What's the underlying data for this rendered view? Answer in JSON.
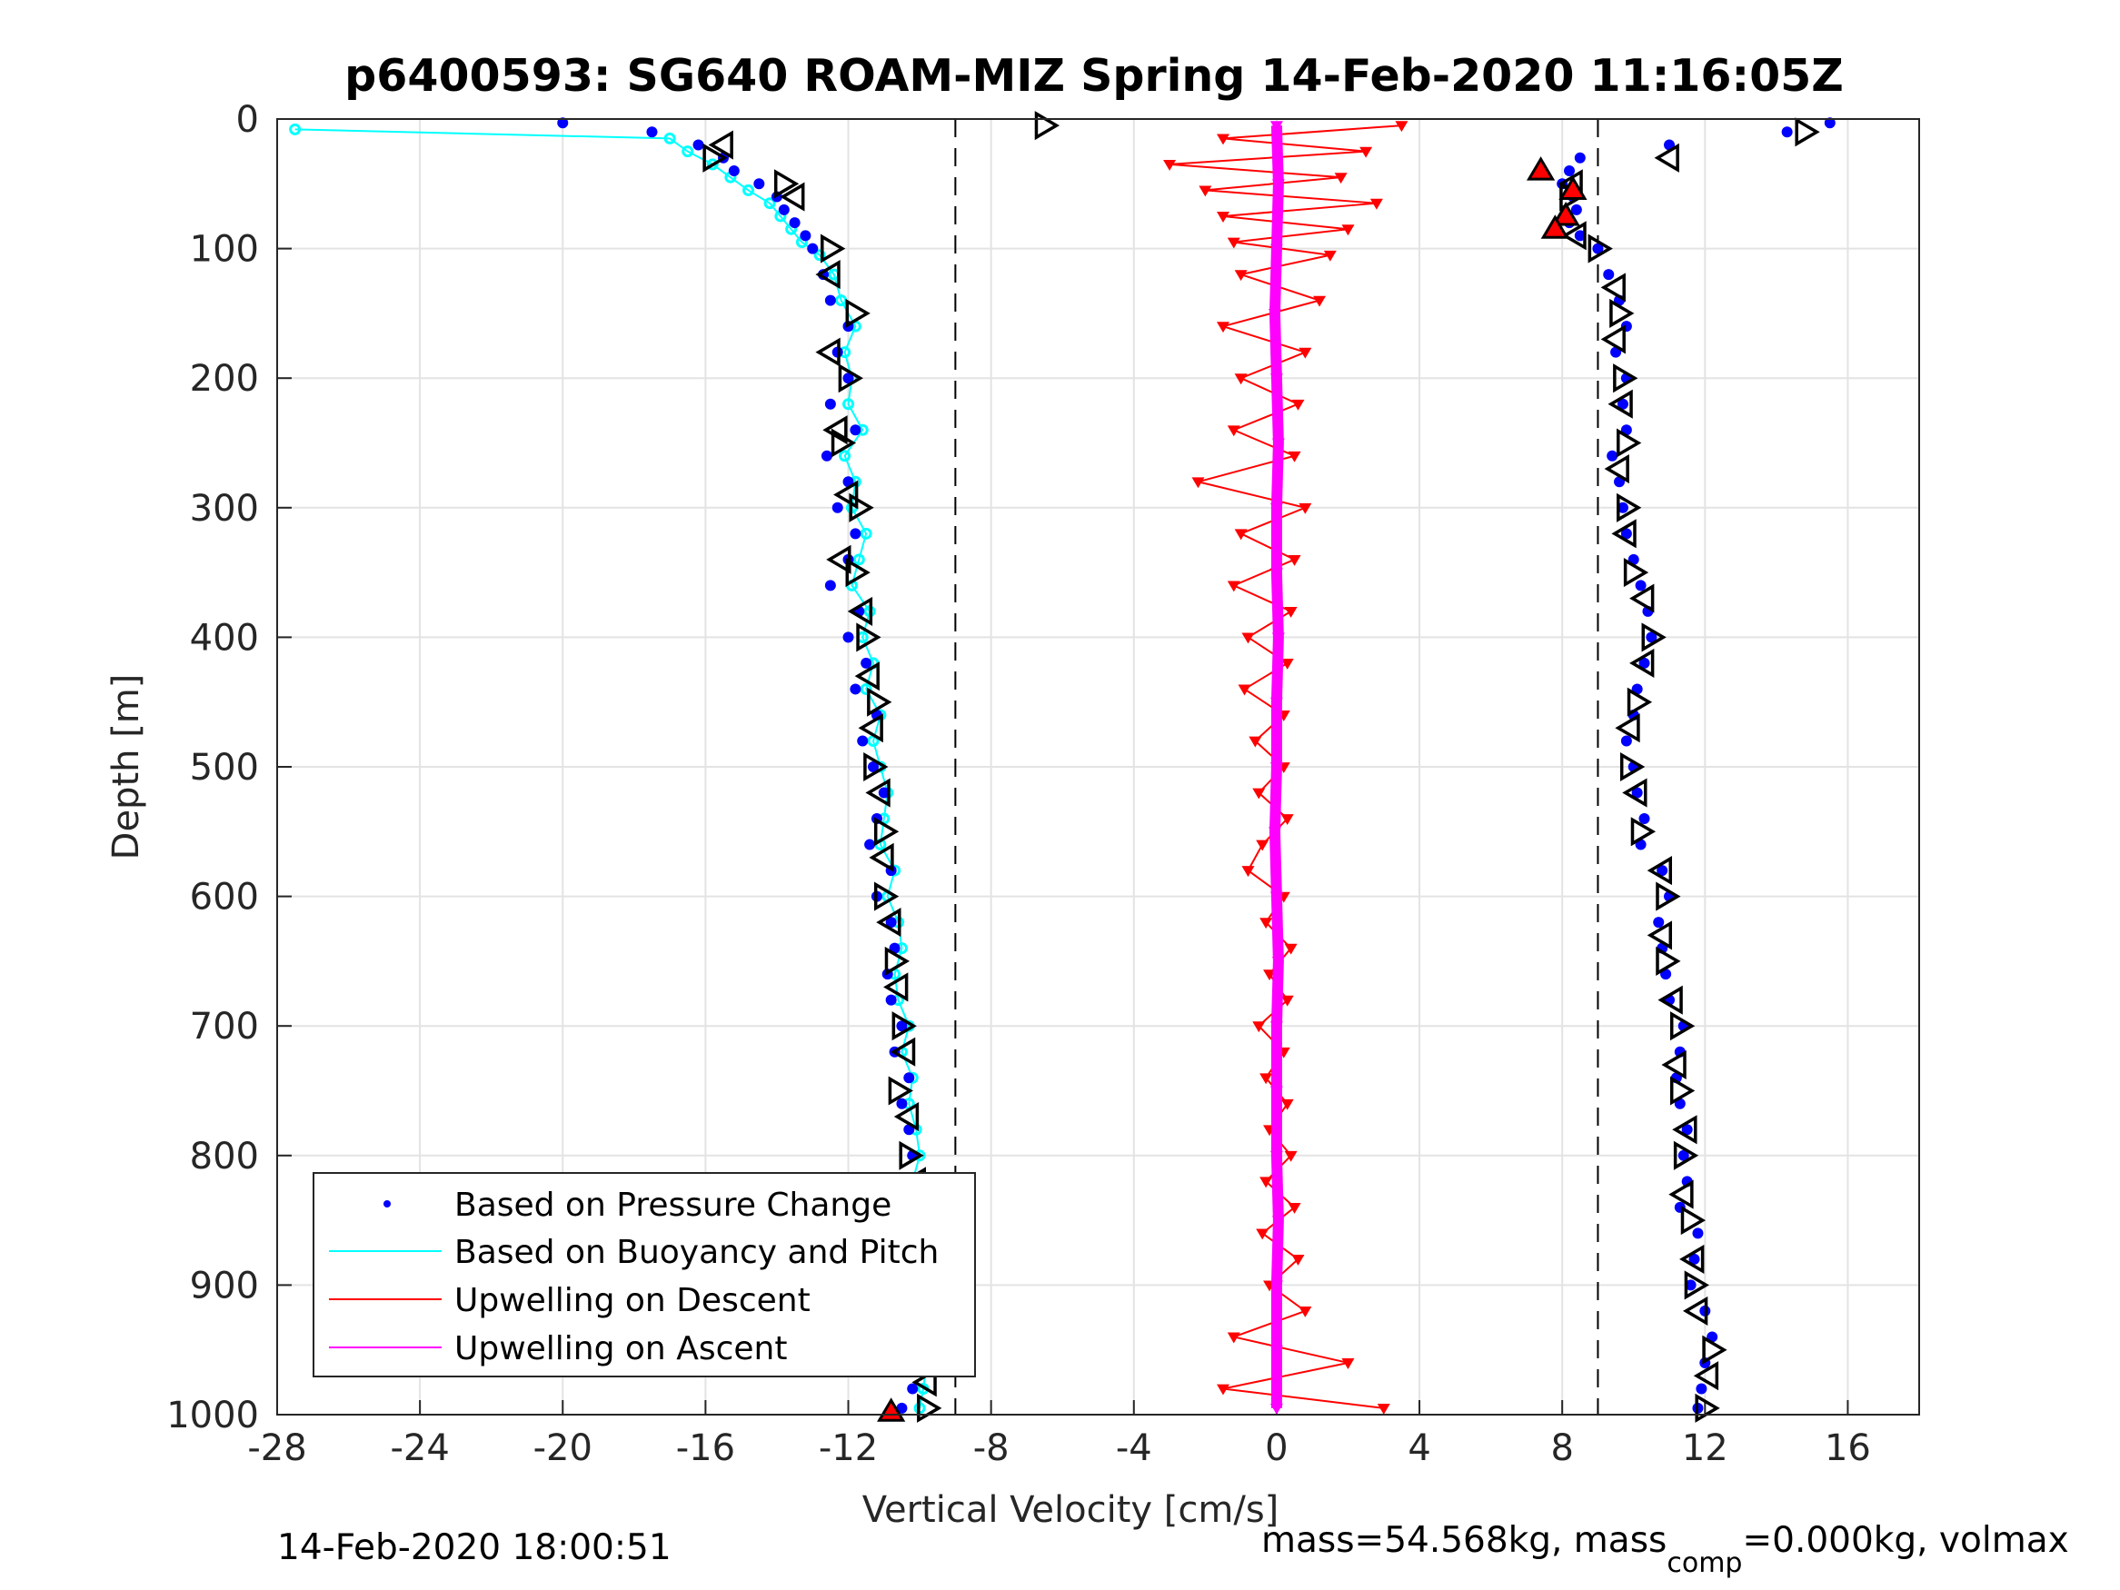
{
  "chart_data": {
    "type": "scatter",
    "title": "p6400593: SG640 ROAM-MIZ Spring 14-Feb-2020 11:16:05Z",
    "xlabel": "Vertical Velocity [cm/s]",
    "ylabel": "Depth [m]",
    "xlim": [
      -28,
      18
    ],
    "ylim": [
      1000,
      0
    ],
    "y_reversed": true,
    "grid": true,
    "xticks": [
      "-28",
      "-24",
      "-20",
      "-16",
      "-12",
      "-8",
      "-4",
      "0",
      "4",
      "8",
      "12",
      "16"
    ],
    "yticks": [
      "0",
      "100",
      "200",
      "300",
      "400",
      "500",
      "600",
      "700",
      "800",
      "900",
      "1000"
    ],
    "reference_lines_x": [
      -9,
      9
    ],
    "legend_position": "bottom-left",
    "footer_left": "14-Feb-2020 18:00:51",
    "footer_right_part1": "mass=54.568kg, mass",
    "footer_right_sub": "comp",
    "footer_right_part2": "=0.000kg, volmax",
    "colors": {
      "pressure": "#0000ff",
      "buoyancy": "#00ffff",
      "descent": "#ff0000",
      "ascent": "#ff00ff"
    },
    "series": [
      {
        "name": "Based on Pressure Change",
        "style": "dots",
        "segments": [
          {
            "depth": [
              3,
              10,
              20,
              30,
              40,
              50,
              60,
              70,
              80,
              90,
              100,
              120,
              140,
              160,
              180,
              200,
              220,
              240,
              260,
              280,
              300,
              320,
              340,
              360,
              380,
              400,
              420,
              440,
              460,
              480,
              500,
              520,
              540,
              560,
              580,
              600,
              620,
              640,
              660,
              680,
              700,
              720,
              740,
              760,
              780,
              800,
              820,
              840,
              860,
              880,
              900,
              920,
              940,
              960,
              980,
              995
            ],
            "velocity": [
              -20,
              -17.5,
              -16.2,
              -15.5,
              -15.2,
              -14.5,
              -14,
              -13.8,
              -13.5,
              -13.2,
              -13,
              -12.7,
              -12.5,
              -12,
              -12.3,
              -12,
              -12.5,
              -11.8,
              -12.6,
              -12,
              -12.3,
              -11.8,
              -12,
              -12.5,
              -11.7,
              -12,
              -11.5,
              -11.8,
              -11.2,
              -11.6,
              -11.3,
              -11,
              -11.2,
              -11.4,
              -10.8,
              -11.2,
              -10.8,
              -10.7,
              -10.9,
              -10.8,
              -10.5,
              -10.7,
              -10.3,
              -10.5,
              -10.3,
              -10.2,
              -10.4,
              -10,
              -10.2,
              -10,
              -10,
              -10.3,
              -9.9,
              -10,
              -10.2,
              -10.5
            ]
          },
          {
            "depth": [
              3,
              10,
              20,
              30,
              40,
              50,
              60,
              70,
              80,
              90,
              100,
              120,
              140,
              160,
              180,
              200,
              220,
              240,
              260,
              280,
              300,
              320,
              340,
              360,
              380,
              400,
              420,
              440,
              460,
              480,
              500,
              520,
              540,
              560,
              580,
              600,
              620,
              640,
              660,
              680,
              700,
              720,
              740,
              760,
              780,
              800,
              820,
              840,
              860,
              880,
              900,
              920,
              940,
              960,
              980,
              995
            ],
            "velocity": [
              15.5,
              14.3,
              11,
              8.5,
              8.2,
              8,
              8.3,
              8.4,
              8.2,
              8.5,
              9,
              9.3,
              9.6,
              9.8,
              9.5,
              9.8,
              9.7,
              9.8,
              9.4,
              9.6,
              9.7,
              9.8,
              10,
              10.2,
              10.4,
              10.5,
              10.3,
              10.1,
              10,
              9.8,
              10,
              10.1,
              10.3,
              10.2,
              10.8,
              11,
              10.7,
              10.8,
              10.9,
              11,
              11.4,
              11.3,
              11.2,
              11.3,
              11.5,
              11.4,
              11.5,
              11.3,
              11.8,
              11.7,
              11.6,
              12,
              12.2,
              12,
              11.9,
              11.8
            ]
          }
        ]
      },
      {
        "name": "Based on Buoyancy and Pitch",
        "style": "line-circles",
        "segments": [
          {
            "depth": [
              8,
              15,
              25,
              35,
              45,
              55,
              65,
              75,
              85,
              95,
              105,
              120,
              140,
              160,
              180,
              200,
              220,
              240,
              260,
              280,
              300,
              320,
              340,
              360,
              380,
              400,
              420,
              440,
              460,
              480,
              500,
              520,
              540,
              560,
              580,
              600,
              620,
              640,
              660,
              680,
              700,
              720,
              740,
              760,
              780,
              800,
              820,
              840,
              860,
              880,
              900,
              920,
              940,
              960,
              980,
              995
            ],
            "velocity": [
              -27.5,
              -17,
              -16.5,
              -15.8,
              -15.3,
              -14.8,
              -14.2,
              -13.9,
              -13.6,
              -13.3,
              -12.8,
              -12.4,
              -12.2,
              -11.8,
              -12.1,
              -11.9,
              -12,
              -11.6,
              -12.1,
              -11.8,
              -11.9,
              -11.5,
              -11.7,
              -11.9,
              -11.4,
              -11.6,
              -11.3,
              -11.5,
              -11.1,
              -11.3,
              -11.1,
              -10.9,
              -11,
              -11.1,
              -10.7,
              -10.9,
              -10.6,
              -10.5,
              -10.7,
              -10.6,
              -10.3,
              -10.5,
              -10.2,
              -10.3,
              -10.1,
              -10,
              -10.2,
              -9.9,
              -10,
              -9.8,
              -9.8,
              -10,
              -9.7,
              -9.8,
              -9.9,
              -10
            ]
          }
        ]
      },
      {
        "name": "Upwelling on Descent",
        "style": "line-triangles",
        "depth": [
          5,
          15,
          25,
          35,
          45,
          55,
          65,
          75,
          85,
          95,
          105,
          120,
          140,
          160,
          180,
          200,
          220,
          240,
          260,
          280,
          300,
          320,
          340,
          360,
          380,
          400,
          420,
          440,
          460,
          480,
          500,
          520,
          540,
          560,
          580,
          600,
          620,
          640,
          660,
          680,
          700,
          720,
          740,
          760,
          780,
          800,
          820,
          840,
          860,
          880,
          900,
          920,
          940,
          960,
          980,
          995
        ],
        "velocity": [
          3.5,
          -1.5,
          2.5,
          -3,
          1.8,
          -2,
          2.8,
          -1.5,
          2,
          -1.2,
          1.5,
          -1,
          1.2,
          -1.5,
          0.8,
          -1,
          0.6,
          -1.2,
          0.5,
          -2.2,
          0.8,
          -1,
          0.5,
          -1.2,
          0.4,
          -0.8,
          0.3,
          -0.9,
          0.2,
          -0.6,
          0.2,
          -0.5,
          0.3,
          -0.4,
          -0.8,
          0.2,
          -0.3,
          0.4,
          -0.2,
          0.3,
          -0.5,
          0.2,
          -0.3,
          0.3,
          -0.2,
          0.4,
          -0.3,
          0.5,
          -0.4,
          0.6,
          -0.2,
          0.8,
          -1.2,
          2,
          -1.5,
          3
        ]
      },
      {
        "name": "Upwelling on Ascent",
        "style": "line-triangles",
        "depth": [
          5,
          50,
          100,
          150,
          200,
          250,
          300,
          350,
          400,
          450,
          500,
          550,
          600,
          650,
          700,
          750,
          800,
          850,
          900,
          950,
          995
        ],
        "velocity": [
          0,
          0.05,
          0,
          -0.05,
          0,
          0.05,
          0,
          0,
          0.05,
          0,
          0,
          -0.05,
          0,
          0.05,
          0,
          0,
          0,
          0.05,
          0,
          0,
          0
        ]
      }
    ],
    "markers": [
      {
        "kind": "right",
        "depth": [
          5,
          30,
          50,
          100,
          150,
          200,
          250,
          300,
          350,
          400,
          450,
          500,
          550,
          600,
          650,
          700,
          750,
          800,
          850,
          900,
          950,
          995
        ],
        "velocity": [
          -6.5,
          -15.8,
          -13.8,
          -12.5,
          -11.8,
          -12,
          -12.2,
          -11.7,
          -11.8,
          -11.5,
          -11.2,
          -11.3,
          -11,
          -11,
          -10.7,
          -10.5,
          -10.6,
          -10.3,
          -10.2,
          -10,
          -9.9,
          -9.8
        ]
      },
      {
        "kind": "left",
        "depth": [
          20,
          60,
          120,
          180,
          240,
          290,
          340,
          380,
          430,
          470,
          520,
          570,
          620,
          670,
          720,
          770,
          820,
          870,
          930,
          975
        ],
        "velocity": [
          -15.5,
          -13.5,
          -12.5,
          -12.5,
          -12.3,
          -12,
          -12.2,
          -11.6,
          -11.4,
          -11.3,
          -11.1,
          -11,
          -10.8,
          -10.6,
          -10.4,
          -10.3,
          -10.1,
          -10,
          -9.9,
          -9.8
        ]
      },
      {
        "kind": "right",
        "depth": [
          10,
          60,
          100,
          150,
          200,
          250,
          300,
          350,
          400,
          450,
          500,
          550,
          600,
          650,
          700,
          750,
          800,
          850,
          900,
          950,
          995
        ],
        "velocity": [
          14.8,
          8.2,
          9,
          9.6,
          9.7,
          9.8,
          9.8,
          10,
          10.5,
          10.1,
          9.9,
          10.2,
          10.9,
          10.9,
          11.3,
          11.3,
          11.4,
          11.6,
          11.7,
          12.2,
          12
        ]
      },
      {
        "kind": "left",
        "depth": [
          30,
          50,
          90,
          130,
          170,
          220,
          270,
          320,
          370,
          420,
          470,
          520,
          580,
          630,
          680,
          730,
          780,
          830,
          880,
          920,
          970
        ],
        "velocity": [
          11,
          8.3,
          8.4,
          9.5,
          9.5,
          9.7,
          9.6,
          9.8,
          10.3,
          10.3,
          9.9,
          10.1,
          10.8,
          10.8,
          11.1,
          11.2,
          11.5,
          11.4,
          11.7,
          11.8,
          12.1
        ]
      },
      {
        "kind": "red-up",
        "depth": [
          40,
          55,
          75,
          85,
          998
        ],
        "velocity": [
          7.4,
          8.3,
          8.1,
          7.8,
          -10.8
        ]
      }
    ]
  }
}
